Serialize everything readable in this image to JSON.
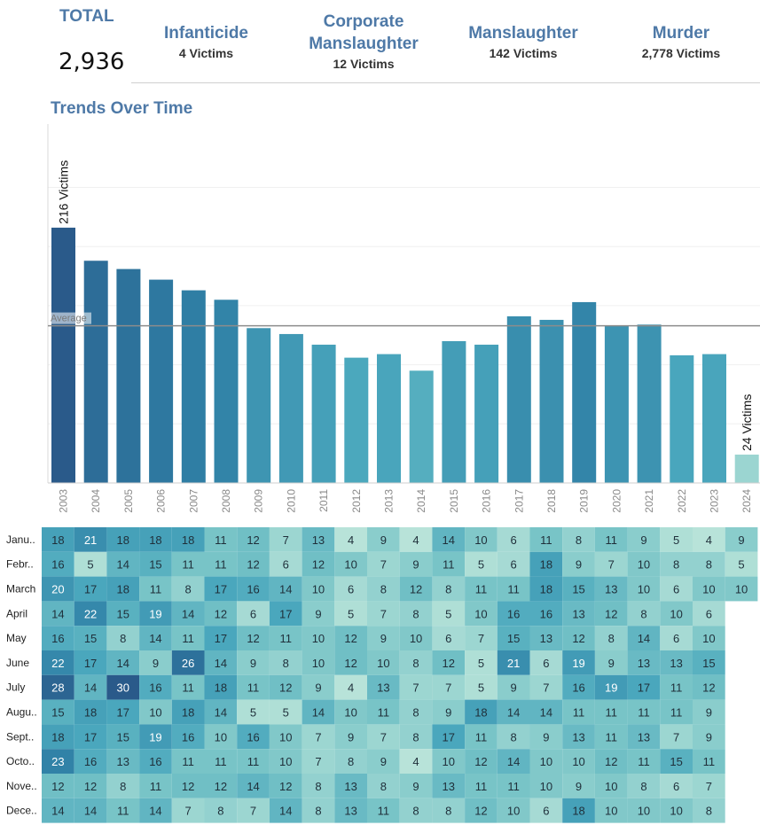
{
  "kpis": {
    "total": {
      "title": "TOTAL",
      "value": "2,936"
    },
    "items": [
      {
        "title": "Infanticide",
        "sub": "4 Victims"
      },
      {
        "title": "Corporate\nManslaughter",
        "sub": "12 Victims"
      },
      {
        "title": "Manslaughter",
        "sub": "142 Victims"
      },
      {
        "title": "Murder",
        "sub": "2,778 Victims"
      }
    ]
  },
  "trends_title": "Trends Over Time",
  "colors": {
    "title_blue": "#4e79a7",
    "average_line": "#8c8c8c"
  },
  "chart_data": [
    {
      "type": "bar",
      "title": "Trends Over Time",
      "categories": [
        "2003",
        "2004",
        "2005",
        "2006",
        "2007",
        "2008",
        "2009",
        "2010",
        "2011",
        "2012",
        "2013",
        "2014",
        "2015",
        "2016",
        "2017",
        "2018",
        "2019",
        "2020",
        "2021",
        "2022",
        "2023",
        "2024"
      ],
      "values": [
        216,
        188,
        181,
        172,
        163,
        155,
        131,
        126,
        117,
        106,
        109,
        95,
        120,
        117,
        141,
        138,
        153,
        133,
        134,
        108,
        109,
        24
      ],
      "ylim": [
        0,
        300
      ],
      "grid": true,
      "reference_line": {
        "label": "Average",
        "value": 133
      },
      "data_labels": [
        {
          "category": "2003",
          "text": "216 Victims"
        },
        {
          "category": "2024",
          "text": "24 Victims"
        }
      ]
    },
    {
      "type": "heatmap",
      "columns": [
        "2003",
        "2004",
        "2005",
        "2006",
        "2007",
        "2008",
        "2009",
        "2010",
        "2011",
        "2012",
        "2013",
        "2014",
        "2015",
        "2016",
        "2017",
        "2018",
        "2019",
        "2020",
        "2021",
        "2022",
        "2023",
        "2024"
      ],
      "rows": [
        "Janu..",
        "Febr..",
        "March",
        "April",
        "May",
        "June",
        "July",
        "Augu..",
        "Sept..",
        "Octo..",
        "Nove..",
        "Dece.."
      ],
      "values": [
        [
          18,
          21,
          18,
          18,
          18,
          11,
          12,
          7,
          13,
          4,
          9,
          4,
          14,
          10,
          6,
          11,
          8,
          11,
          9,
          5,
          4,
          9
        ],
        [
          16,
          5,
          14,
          15,
          11,
          11,
          12,
          6,
          12,
          10,
          7,
          9,
          11,
          5,
          6,
          18,
          9,
          7,
          10,
          8,
          8,
          5
        ],
        [
          20,
          17,
          18,
          11,
          8,
          17,
          16,
          14,
          10,
          6,
          8,
          12,
          8,
          11,
          11,
          18,
          15,
          13,
          10,
          6,
          10,
          10
        ],
        [
          14,
          22,
          15,
          19,
          14,
          12,
          6,
          17,
          9,
          5,
          7,
          8,
          5,
          10,
          16,
          16,
          13,
          12,
          8,
          10,
          6,
          null
        ],
        [
          16,
          15,
          8,
          14,
          11,
          17,
          12,
          11,
          10,
          12,
          9,
          10,
          6,
          7,
          15,
          13,
          12,
          8,
          14,
          6,
          10,
          null
        ],
        [
          22,
          17,
          14,
          9,
          26,
          14,
          9,
          8,
          10,
          12,
          10,
          8,
          12,
          5,
          21,
          6,
          19,
          9,
          13,
          13,
          15,
          null
        ],
        [
          28,
          14,
          30,
          16,
          11,
          18,
          11,
          12,
          9,
          4,
          13,
          7,
          7,
          5,
          9,
          7,
          16,
          19,
          17,
          11,
          12,
          null
        ],
        [
          15,
          18,
          17,
          10,
          18,
          14,
          5,
          5,
          14,
          10,
          11,
          8,
          9,
          18,
          14,
          14,
          11,
          11,
          11,
          11,
          9,
          null
        ],
        [
          18,
          17,
          15,
          19,
          16,
          10,
          16,
          10,
          7,
          9,
          7,
          8,
          17,
          11,
          8,
          9,
          13,
          11,
          13,
          7,
          9,
          null
        ],
        [
          23,
          16,
          13,
          16,
          11,
          11,
          11,
          10,
          7,
          8,
          9,
          4,
          10,
          12,
          14,
          10,
          10,
          12,
          11,
          15,
          11,
          null
        ],
        [
          12,
          12,
          8,
          11,
          12,
          12,
          14,
          12,
          8,
          13,
          8,
          9,
          13,
          11,
          11,
          10,
          9,
          10,
          8,
          6,
          7,
          null
        ],
        [
          14,
          14,
          11,
          14,
          7,
          8,
          7,
          14,
          8,
          13,
          11,
          8,
          8,
          12,
          10,
          6,
          18,
          10,
          10,
          10,
          8,
          null
        ]
      ]
    }
  ]
}
